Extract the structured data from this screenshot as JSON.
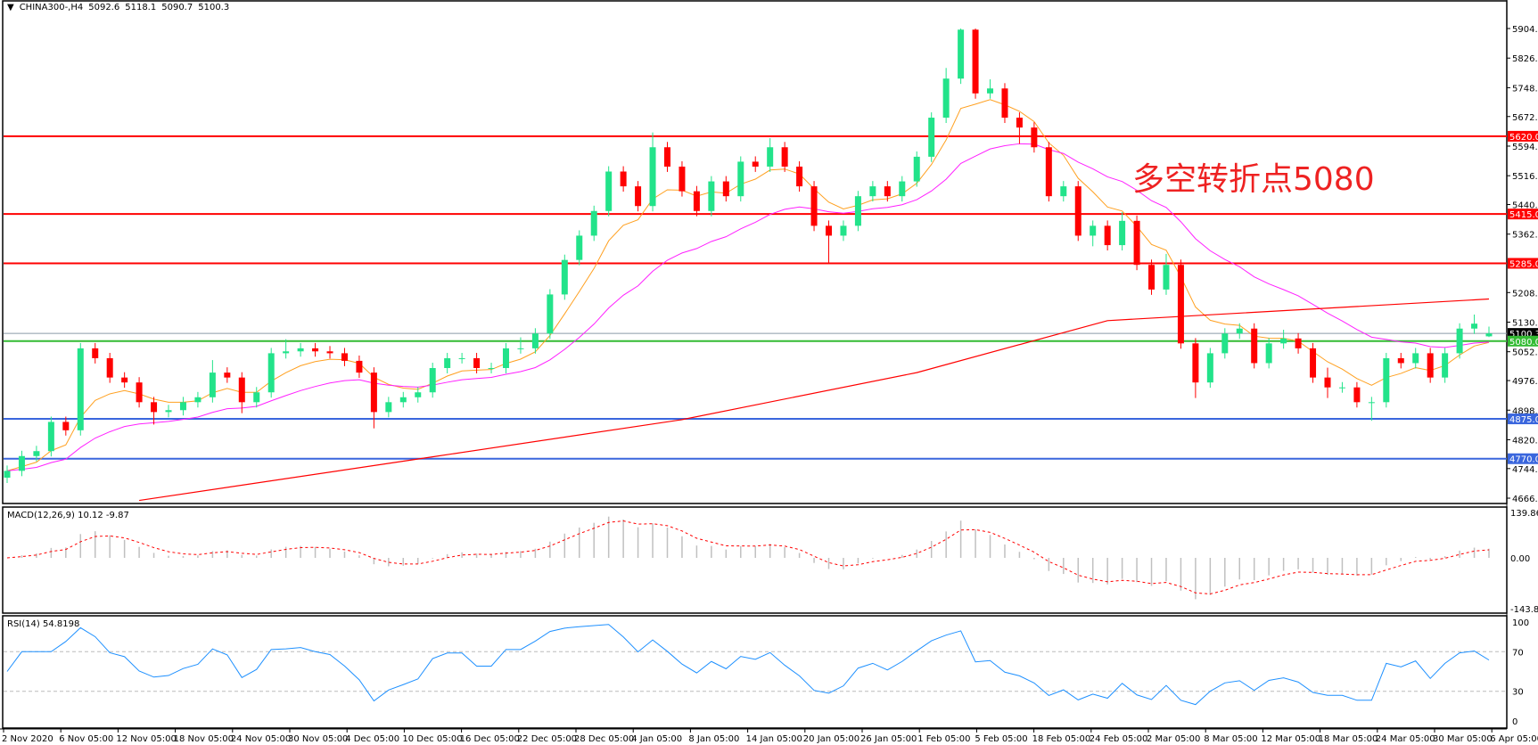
{
  "header": {
    "symbol": "CHINA300-,H4",
    "open": "5092.6",
    "high": "5118.1",
    "low": "5090.7",
    "close": "5100.3"
  },
  "annotation": "多空转折点5080",
  "colors": {
    "bull": "#22e38a",
    "bear": "#ff0000",
    "ma_fast": "#ffa020",
    "ma_mid": "#ff20ff",
    "ma_long": "#ff0000",
    "macd_hist": "#c0c0c0",
    "macd_signal": "#ff0000",
    "rsi": "#1e90ff",
    "res": "#ff0000",
    "sup": "#3a66dd",
    "pivot": "#33bb33",
    "price": "#8a9aa8"
  },
  "chart_data": {
    "type": "candlestick",
    "ylim": [
      4666,
      5904
    ],
    "yticks": [
      "5904.0",
      "5826.0",
      "5748.0",
      "5672.0",
      "5594.0",
      "5516.0",
      "5440.0",
      "5362.0",
      "5208.0",
      "5130.0",
      "5052.0",
      "4976.0",
      "4898.0",
      "4820.0",
      "4744.0",
      "4666.0"
    ],
    "xticks": [
      "2 Nov 2020",
      "6 Nov 05:00",
      "12 Nov 05:00",
      "18 Nov 05:00",
      "24 Nov 05:00",
      "30 Nov 05:00",
      "4 Dec 05:00",
      "10 Dec 05:00",
      "16 Dec 05:00",
      "22 Dec 05:00",
      "28 Dec 05:00",
      "4 Jan 05:00",
      "8 Jan 05:00",
      "14 Jan 05:00",
      "20 Jan 05:00",
      "26 Jan 05:00",
      "1 Feb 05:00",
      "5 Feb 05:00",
      "18 Feb 05:00",
      "24 Feb 05:00",
      "2 Mar 05:00",
      "8 Mar 05:00",
      "12 Mar 05:00",
      "18 Mar 05:00",
      "24 Mar 05:00",
      "30 Mar 05:00",
      "6 Apr 05:00"
    ],
    "levels": [
      {
        "value": 5620,
        "label": "5620.0",
        "kind": "res"
      },
      {
        "value": 5415,
        "label": "5415.0",
        "kind": "res"
      },
      {
        "value": 5285,
        "label": "5285.0",
        "kind": "res"
      },
      {
        "value": 5100.3,
        "label": "5100.3",
        "kind": "price"
      },
      {
        "value": 5080,
        "label": "5080.0",
        "kind": "pivot"
      },
      {
        "value": 4875,
        "label": "4875.0",
        "kind": "sup"
      },
      {
        "value": 4770,
        "label": "4770.0",
        "kind": "sup"
      }
    ],
    "ma_long": [
      [
        9,
        4660
      ],
      [
        29,
        4775
      ],
      [
        46,
        4873
      ],
      [
        62,
        4997
      ],
      [
        75,
        5134
      ],
      [
        101,
        5191
      ]
    ],
    "candles": [
      [
        4720,
        4752,
        4706,
        4738
      ],
      [
        4738,
        4791,
        4724,
        4777
      ],
      [
        4777,
        4804,
        4763,
        4790
      ],
      [
        4790,
        4881,
        4776,
        4867
      ],
      [
        4867,
        4881,
        4831,
        4845
      ],
      [
        4845,
        5075,
        4831,
        5061
      ],
      [
        5061,
        5075,
        5021,
        5035
      ],
      [
        5035,
        5049,
        4970,
        4984
      ],
      [
        4984,
        4998,
        4957,
        4971
      ],
      [
        4971,
        4985,
        4905,
        4919
      ],
      [
        4919,
        4933,
        4860,
        4893
      ],
      [
        4893,
        4912,
        4879,
        4898
      ],
      [
        4898,
        4933,
        4884,
        4919
      ],
      [
        4919,
        4946,
        4905,
        4932
      ],
      [
        4932,
        5030,
        4918,
        4997
      ],
      [
        4997,
        5011,
        4970,
        4984
      ],
      [
        4984,
        4998,
        4890,
        4919
      ],
      [
        4919,
        4959,
        4905,
        4945
      ],
      [
        4945,
        5062,
        4931,
        5048
      ],
      [
        5048,
        5085,
        5034,
        5053
      ],
      [
        5053,
        5075,
        5039,
        5061
      ],
      [
        5061,
        5075,
        5039,
        5053
      ],
      [
        5053,
        5067,
        5034,
        5048
      ],
      [
        5048,
        5062,
        5014,
        5028
      ],
      [
        5028,
        5042,
        4983,
        4997
      ],
      [
        4997,
        5011,
        4850,
        4893
      ],
      [
        4893,
        4933,
        4879,
        4919
      ],
      [
        4919,
        4946,
        4905,
        4932
      ],
      [
        4932,
        4959,
        4918,
        4945
      ],
      [
        4945,
        5023,
        4931,
        5009
      ],
      [
        5009,
        5049,
        4995,
        5035
      ],
      [
        5035,
        5049,
        5021,
        5035
      ],
      [
        5035,
        5049,
        4995,
        5009
      ],
      [
        5009,
        5023,
        4995,
        5009
      ],
      [
        5009,
        5075,
        4995,
        5061
      ],
      [
        5061,
        5090,
        5047,
        5061
      ],
      [
        5061,
        5114,
        5047,
        5100
      ],
      [
        5100,
        5217,
        5086,
        5203
      ],
      [
        5203,
        5308,
        5189,
        5294
      ],
      [
        5294,
        5372,
        5280,
        5358
      ],
      [
        5358,
        5437,
        5344,
        5423
      ],
      [
        5423,
        5541,
        5409,
        5527
      ],
      [
        5527,
        5541,
        5474,
        5488
      ],
      [
        5488,
        5502,
        5422,
        5436
      ],
      [
        5436,
        5630,
        5422,
        5591
      ],
      [
        5591,
        5605,
        5526,
        5540
      ],
      [
        5540,
        5554,
        5461,
        5475
      ],
      [
        5475,
        5489,
        5409,
        5423
      ],
      [
        5423,
        5515,
        5409,
        5501
      ],
      [
        5501,
        5515,
        5448,
        5462
      ],
      [
        5462,
        5567,
        5448,
        5553
      ],
      [
        5553,
        5567,
        5526,
        5540
      ],
      [
        5540,
        5615,
        5526,
        5591
      ],
      [
        5591,
        5605,
        5526,
        5540
      ],
      [
        5540,
        5554,
        5474,
        5488
      ],
      [
        5488,
        5502,
        5370,
        5384
      ],
      [
        5384,
        5398,
        5285,
        5358
      ],
      [
        5358,
        5398,
        5344,
        5384
      ],
      [
        5384,
        5476,
        5370,
        5462
      ],
      [
        5462,
        5502,
        5448,
        5488
      ],
      [
        5488,
        5502,
        5448,
        5462
      ],
      [
        5462,
        5515,
        5448,
        5501
      ],
      [
        5501,
        5580,
        5487,
        5566
      ],
      [
        5566,
        5683,
        5552,
        5669
      ],
      [
        5669,
        5800,
        5655,
        5772
      ],
      [
        5772,
        5904,
        5758,
        5901
      ],
      [
        5901,
        5904,
        5719,
        5733
      ],
      [
        5733,
        5770,
        5719,
        5746
      ],
      [
        5746,
        5760,
        5655,
        5669
      ],
      [
        5669,
        5683,
        5600,
        5643
      ],
      [
        5643,
        5657,
        5577,
        5591
      ],
      [
        5591,
        5605,
        5448,
        5462
      ],
      [
        5462,
        5502,
        5448,
        5488
      ],
      [
        5488,
        5502,
        5344,
        5358
      ],
      [
        5358,
        5398,
        5330,
        5384
      ],
      [
        5384,
        5398,
        5319,
        5333
      ],
      [
        5333,
        5420,
        5319,
        5397
      ],
      [
        5397,
        5411,
        5267,
        5281
      ],
      [
        5281,
        5295,
        5202,
        5216
      ],
      [
        5216,
        5310,
        5202,
        5281
      ],
      [
        5281,
        5295,
        5060,
        5074
      ],
      [
        5074,
        5088,
        4930,
        4971
      ],
      [
        4971,
        5062,
        4957,
        5048
      ],
      [
        5048,
        5114,
        5034,
        5100
      ],
      [
        5100,
        5127,
        5086,
        5113
      ],
      [
        5113,
        5127,
        5008,
        5022
      ],
      [
        5022,
        5088,
        5008,
        5074
      ],
      [
        5074,
        5110,
        5060,
        5087
      ],
      [
        5087,
        5101,
        5047,
        5061
      ],
      [
        5061,
        5075,
        4970,
        4984
      ],
      [
        4984,
        5010,
        4930,
        4958
      ],
      [
        4958,
        4972,
        4944,
        4958
      ],
      [
        4958,
        4972,
        4905,
        4919
      ],
      [
        4919,
        4933,
        4870,
        4919
      ],
      [
        4919,
        5049,
        4905,
        5035
      ],
      [
        5035,
        5049,
        5008,
        5022
      ],
      [
        5022,
        5062,
        5008,
        5048
      ],
      [
        5048,
        5062,
        4970,
        4984
      ],
      [
        4984,
        5062,
        4970,
        5048
      ],
      [
        5048,
        5127,
        5034,
        5113
      ],
      [
        5113,
        5150,
        5099,
        5126
      ],
      [
        5092.6,
        5118.1,
        5090.7,
        5100.3
      ]
    ],
    "macd": {
      "label": "MACD(12,26,9) 10.12 -9.87",
      "ylim": [
        -143.82,
        139.86
      ],
      "yticks": [
        "139.86",
        "0.00",
        "-143.82"
      ]
    },
    "rsi": {
      "label": "RSI(14) 54.8198",
      "ylim": [
        0,
        100
      ],
      "yticks": [
        "100",
        "70",
        "30",
        "0"
      ],
      "levels": [
        70,
        30
      ]
    }
  }
}
